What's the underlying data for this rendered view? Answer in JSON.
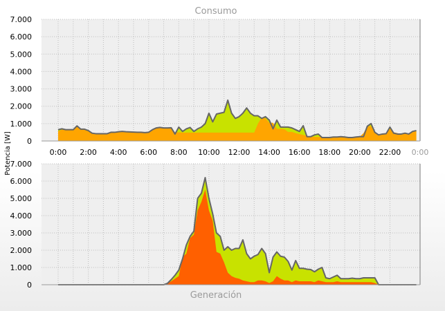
{
  "ylabel": "Potencia [W]",
  "colors": {
    "green": "#c8e200",
    "orange": "#ffa500",
    "red_orange": "#ff6000",
    "line": "#666666",
    "grid": "#bdbdbd",
    "plot_bg": "#efefef",
    "title": "#9a9a9a"
  },
  "chart_data": [
    {
      "type": "area",
      "title": "Consumo",
      "ylabel": "Potencia [W]",
      "ylim": [
        0,
        7000
      ],
      "yticks": [
        "0",
        "1.000",
        "2.000",
        "3.000",
        "4.000",
        "5.000",
        "6.000",
        "7.000"
      ],
      "xlim": [
        0,
        24
      ],
      "xticks": [
        "0:00",
        "2:00",
        "4:00",
        "6:00",
        "8:00",
        "10:00",
        "12:00",
        "14:00",
        "16:00",
        "18:00",
        "20:00",
        "22:00",
        "0:00"
      ],
      "grid": true,
      "x": [
        0.0,
        0.25,
        0.5,
        0.75,
        1.0,
        1.25,
        1.5,
        1.75,
        2.0,
        2.25,
        2.5,
        2.75,
        3.0,
        3.25,
        3.5,
        3.75,
        4.0,
        4.25,
        4.5,
        4.75,
        5.0,
        5.25,
        5.5,
        5.75,
        6.0,
        6.25,
        6.5,
        6.75,
        7.0,
        7.25,
        7.5,
        7.75,
        8.0,
        8.25,
        8.5,
        8.75,
        9.0,
        9.25,
        9.5,
        9.75,
        10.0,
        10.25,
        10.5,
        10.75,
        11.0,
        11.25,
        11.5,
        11.75,
        12.0,
        12.25,
        12.5,
        12.75,
        13.0,
        13.25,
        13.5,
        13.75,
        14.0,
        14.25,
        14.5,
        14.75,
        15.0,
        15.25,
        15.5,
        15.75,
        16.0,
        16.25,
        16.5,
        16.75,
        17.0,
        17.25,
        17.5,
        17.75,
        18.0,
        18.25,
        18.5,
        18.75,
        19.0,
        19.25,
        19.5,
        19.75,
        20.0,
        20.25,
        20.5,
        20.75,
        21.0,
        21.25,
        21.5,
        21.75,
        22.0,
        22.25,
        22.5,
        22.75,
        23.0,
        23.25,
        23.5,
        23.75
      ],
      "series": [
        {
          "color": "orange",
          "values": [
            550,
            650,
            620,
            620,
            650,
            850,
            650,
            650,
            550,
            450,
            420,
            420,
            420,
            420,
            500,
            500,
            530,
            550,
            530,
            520,
            510,
            500,
            500,
            480,
            500,
            650,
            750,
            780,
            730,
            730,
            740,
            500,
            500,
            480,
            480,
            480,
            480,
            480,
            480,
            480,
            480,
            480,
            480,
            480,
            480,
            480,
            480,
            480,
            480,
            480,
            480,
            480,
            480,
            1000,
            1350,
            1300,
            1050,
            1050,
            700,
            700,
            680,
            520,
            520,
            450,
            400,
            350,
            300,
            250,
            240,
            230,
            230,
            220,
            220,
            220,
            220,
            220,
            220,
            220,
            220,
            230,
            250,
            450,
            850,
            850,
            500,
            400,
            420,
            460,
            700,
            500,
            450,
            400,
            450,
            430,
            500,
            600
          ]
        },
        {
          "color": "green",
          "values": [
            650,
            700,
            650,
            650,
            650,
            870,
            680,
            680,
            600,
            450,
            420,
            420,
            420,
            420,
            500,
            500,
            530,
            550,
            530,
            520,
            510,
            500,
            500,
            480,
            500,
            650,
            750,
            780,
            750,
            750,
            760,
            400,
            800,
            550,
            700,
            780,
            550,
            700,
            800,
            1000,
            1600,
            1100,
            1550,
            1600,
            1650,
            2350,
            1600,
            1300,
            1400,
            1600,
            1900,
            1600,
            1450,
            1450,
            1300,
            1400,
            1200,
            700,
            1200,
            800,
            800,
            800,
            750,
            650,
            550,
            880,
            250,
            250,
            350,
            400,
            200,
            200,
            200,
            230,
            230,
            250,
            230,
            200,
            200,
            230,
            250,
            250,
            850,
            1000,
            500,
            350,
            400,
            420,
            800,
            450,
            400,
            400,
            450,
            400,
            550,
            600
          ]
        }
      ]
    },
    {
      "type": "area",
      "title": "Generación",
      "ylabel": "Potencia [W]",
      "ylim": [
        0,
        7000
      ],
      "yticks": [
        "0",
        "1.000",
        "2.000",
        "3.000",
        "4.000",
        "5.000",
        "6.000",
        "7.000"
      ],
      "grid": true,
      "x": [
        0.0,
        0.25,
        0.5,
        0.75,
        1.0,
        1.25,
        1.5,
        1.75,
        2.0,
        2.25,
        2.5,
        2.75,
        3.0,
        3.25,
        3.5,
        3.75,
        4.0,
        4.25,
        4.5,
        4.75,
        5.0,
        5.25,
        5.5,
        5.75,
        6.0,
        6.25,
        6.5,
        6.75,
        7.0,
        7.25,
        7.5,
        7.75,
        8.0,
        8.25,
        8.5,
        8.75,
        9.0,
        9.25,
        9.5,
        9.75,
        10.0,
        10.25,
        10.5,
        10.75,
        11.0,
        11.25,
        11.5,
        11.75,
        12.0,
        12.25,
        12.5,
        12.75,
        13.0,
        13.25,
        13.5,
        13.75,
        14.0,
        14.25,
        14.5,
        14.75,
        15.0,
        15.25,
        15.5,
        15.75,
        16.0,
        16.25,
        16.5,
        16.75,
        17.0,
        17.25,
        17.5,
        17.75,
        18.0,
        18.25,
        18.5,
        18.75,
        19.0,
        19.25,
        19.5,
        19.75,
        20.0,
        20.25,
        20.5,
        20.75,
        21.0,
        21.25,
        21.5,
        21.75,
        22.0,
        22.25,
        22.5,
        22.75,
        23.0,
        23.25,
        23.5,
        23.75
      ],
      "series": [
        {
          "color": "green",
          "values": [
            0,
            0,
            0,
            0,
            0,
            0,
            0,
            0,
            0,
            0,
            0,
            0,
            0,
            0,
            0,
            0,
            0,
            0,
            0,
            0,
            0,
            0,
            0,
            0,
            0,
            0,
            0,
            0,
            0,
            80,
            300,
            550,
            850,
            1500,
            2300,
            2800,
            3100,
            5000,
            5300,
            6200,
            5000,
            4100,
            3000,
            2800,
            2000,
            2200,
            2000,
            2100,
            2100,
            2600,
            1800,
            1500,
            1650,
            1750,
            2100,
            1800,
            700,
            1600,
            1900,
            1650,
            1600,
            1350,
            850,
            1400,
            950,
            950,
            900,
            880,
            750,
            900,
            1000,
            400,
            350,
            450,
            550,
            350,
            350,
            350,
            380,
            350,
            350,
            400,
            400,
            400,
            400,
            0,
            0,
            0,
            0,
            0,
            0,
            0,
            0,
            0,
            0,
            0
          ]
        },
        {
          "color": "red_orange",
          "values": [
            0,
            0,
            0,
            0,
            0,
            0,
            0,
            0,
            0,
            0,
            0,
            0,
            0,
            0,
            0,
            0,
            0,
            0,
            0,
            0,
            0,
            0,
            0,
            0,
            0,
            0,
            0,
            0,
            0,
            80,
            200,
            350,
            500,
            1600,
            1800,
            2700,
            2900,
            4300,
            4800,
            5500,
            4300,
            3700,
            1900,
            1800,
            1300,
            700,
            500,
            400,
            350,
            250,
            200,
            150,
            150,
            250,
            250,
            200,
            100,
            200,
            500,
            350,
            250,
            250,
            150,
            250,
            200,
            200,
            200,
            200,
            150,
            250,
            200,
            150,
            150,
            150,
            200,
            150,
            150,
            150,
            150,
            150,
            150,
            150,
            150,
            150,
            100,
            0,
            0,
            0,
            0,
            0,
            0,
            0,
            0,
            0,
            0,
            0
          ]
        }
      ]
    }
  ]
}
